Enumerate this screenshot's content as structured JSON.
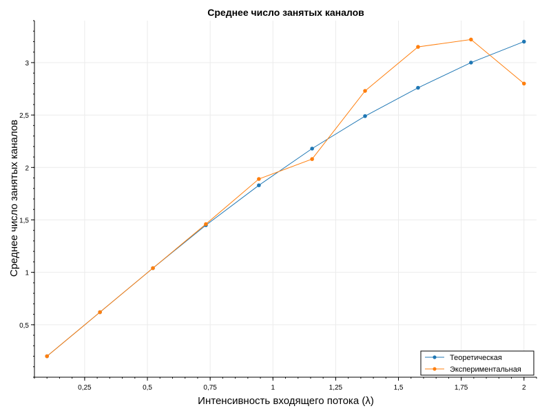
{
  "chart_data": {
    "type": "line",
    "title": "Среднее число занятых каналов",
    "xlabel": "Интенсивность входящего потока (λ)",
    "ylabel": "Среднее число занятых каналов",
    "xlim": [
      0.05,
      2.05
    ],
    "ylim": [
      0,
      3.4
    ],
    "x_ticks": [
      0.25,
      0.5,
      0.75,
      1,
      1.25,
      1.5,
      1.75,
      2
    ],
    "x_tick_labels": [
      "0,25",
      "0,5",
      "0,75",
      "1",
      "1,25",
      "1,5",
      "1,75",
      "2"
    ],
    "y_ticks": [
      0.5,
      1,
      1.5,
      2,
      2.5,
      3
    ],
    "y_tick_labels": [
      "0,5",
      "1",
      "1,5",
      "2",
      "2,5",
      "3"
    ],
    "grid": true,
    "legend_position": "bottom-right",
    "x": [
      0.1,
      0.311,
      0.522,
      0.733,
      0.944,
      1.156,
      1.367,
      1.578,
      1.789,
      2.0
    ],
    "series": [
      {
        "name": "Теоретическая",
        "color": "#1f77b4",
        "values": [
          0.2,
          0.62,
          1.04,
          1.45,
          1.83,
          2.18,
          2.49,
          2.76,
          3.0,
          3.2
        ]
      },
      {
        "name": "Экспериментальная",
        "color": "#ff7f0e",
        "values": [
          0.2,
          0.62,
          1.04,
          1.46,
          1.89,
          2.08,
          2.73,
          3.15,
          3.22,
          2.8
        ]
      }
    ]
  }
}
